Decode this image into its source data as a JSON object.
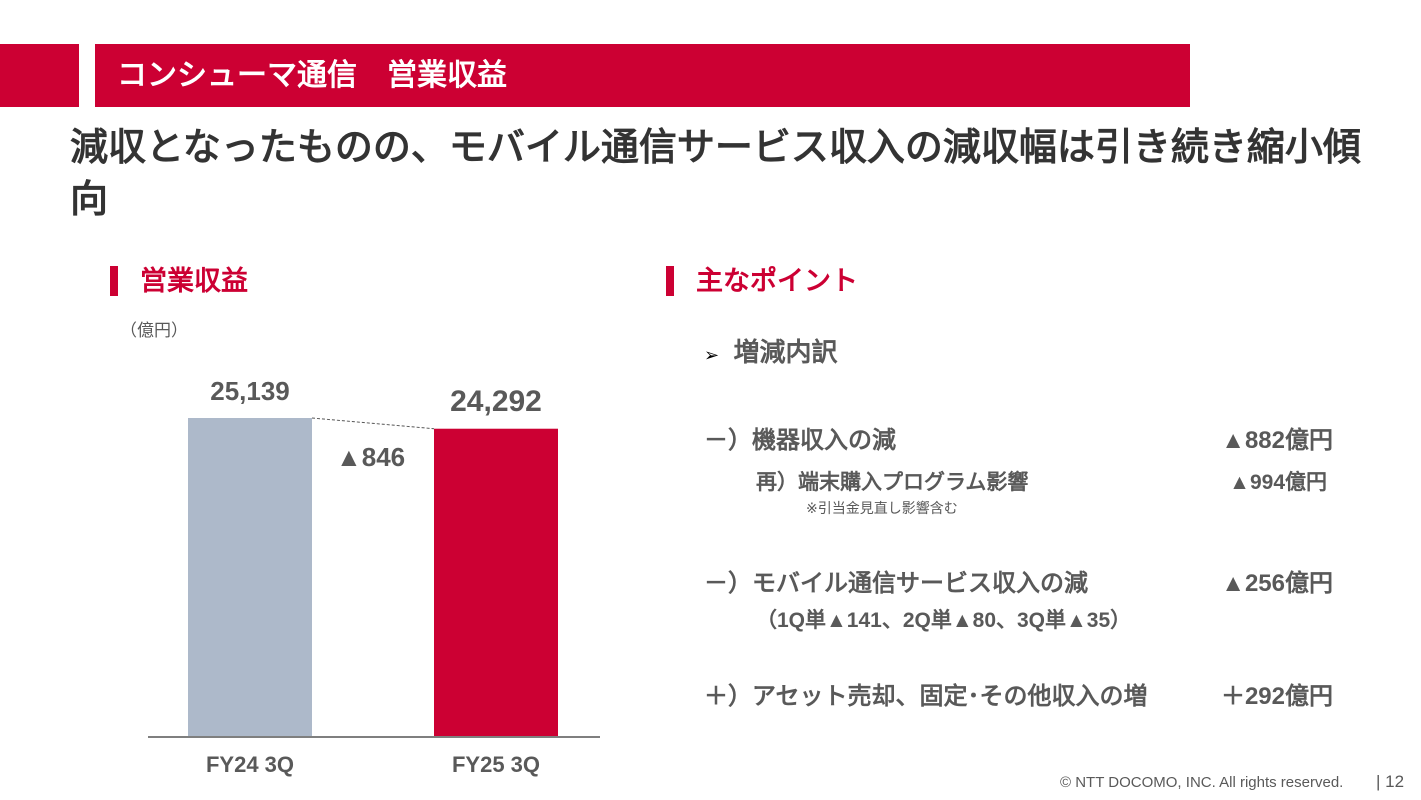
{
  "header": {
    "title": "コンシューマ通信　営業収益",
    "headline": "減収となったものの、モバイル通信サービス収入の減収幅は引き続き縮小傾向"
  },
  "left": {
    "section_title": "営業収益",
    "unit": "（億円）"
  },
  "chart_data": {
    "type": "bar",
    "categories": [
      "FY24 3Q",
      "FY25 3Q"
    ],
    "values": [
      25139,
      24292
    ],
    "value_labels": [
      "25,139",
      "24,292"
    ],
    "colors": [
      "#adb9ca",
      "#cc0033"
    ],
    "annotation": "▲846",
    "ylabel": "（億円）",
    "grid": false
  },
  "right": {
    "section_title": "主なポイント",
    "bullet": "増減内訳",
    "items": [
      {
        "prefix": "－）",
        "label": "機器収入の減",
        "value": "▲882億円"
      },
      {
        "prefix": "再）",
        "label": "端末購入プログラム影響",
        "value": "▲994億円",
        "note": "※引当金見直し影響含む"
      },
      {
        "prefix": "－）",
        "label": "モバイル通信サービス収入の減",
        "value": "▲256億円",
        "sub": "（1Q単▲141、2Q単▲80、3Q単▲35）"
      },
      {
        "prefix": "＋）",
        "label": "アセット売却、固定･その他収入の増",
        "value": "＋292億円"
      }
    ]
  },
  "footer": {
    "copyright": "© NTT DOCOMO, INC.  All rights reserved.",
    "page": "12"
  }
}
